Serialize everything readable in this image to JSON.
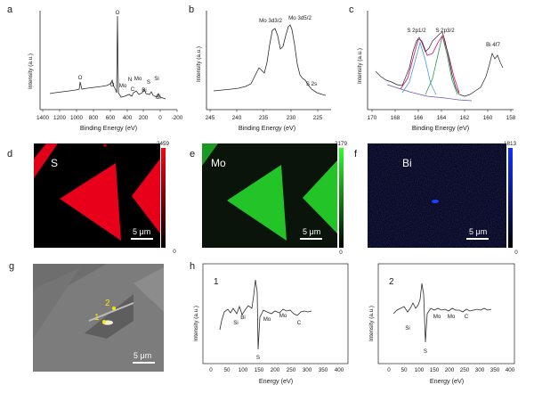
{
  "figure": {
    "panels": {
      "a": {
        "letter": "a",
        "ylabel": "Intensity (a.u.)",
        "xlabel": "Binding Energy (eV)",
        "xticks": [
          "1400",
          "1200",
          "1000",
          "800",
          "600",
          "400",
          "200",
          "0",
          "-200"
        ],
        "peaks": [
          "O",
          "O",
          "O",
          "Mo",
          "N",
          "C",
          "Mo",
          "Bi",
          "S",
          "Si",
          "Bi"
        ]
      },
      "b": {
        "letter": "b",
        "ylabel": "Intensity (a.u.)",
        "xlabel": "Binding Energy (eV)",
        "xticks": [
          "245",
          "240",
          "235",
          "230",
          "225"
        ],
        "peaks": [
          "Mo 3d3/2",
          "Mo 3d5/2",
          "S 2s"
        ]
      },
      "c": {
        "letter": "c",
        "ylabel": "Intensity (a.u.)",
        "xlabel": "Binding Energy (eV)",
        "xticks": [
          "170",
          "168",
          "166",
          "164",
          "162",
          "160",
          "158"
        ],
        "peaks": [
          "S 2p1/2",
          "S 2p3/2",
          "Bi 4f7"
        ]
      },
      "d": {
        "letter": "d",
        "element": "S",
        "scale_max": "2459",
        "scale_min": "0",
        "scalebar": "5 μm",
        "color": "#e8001a"
      },
      "e": {
        "letter": "e",
        "element": "Mo",
        "scale_max": "2179",
        "scale_min": "0",
        "scalebar": "5 μm",
        "color": "#22c428"
      },
      "f": {
        "letter": "f",
        "element": "Bi",
        "scale_max": "1813",
        "scale_min": "0",
        "scalebar": "5 μm",
        "color": "#1020e0"
      },
      "g": {
        "letter": "g",
        "points": [
          "1",
          "2"
        ],
        "scalebar": "5 μm"
      },
      "h": {
        "letter": "h",
        "spectra": [
          {
            "label": "1",
            "peaks": [
              "Si",
              "Bi",
              "Mo",
              "Mo",
              "C",
              "S"
            ]
          },
          {
            "label": "2",
            "peaks": [
              "Si",
              "Mo",
              "Mo",
              "C",
              "S"
            ]
          }
        ],
        "ylabel": "Intensity (a.u.)",
        "xlabel": "Energy (eV)",
        "xticks": [
          "0",
          "50",
          "100",
          "150",
          "200",
          "250",
          "300",
          "350",
          "400"
        ]
      }
    }
  }
}
